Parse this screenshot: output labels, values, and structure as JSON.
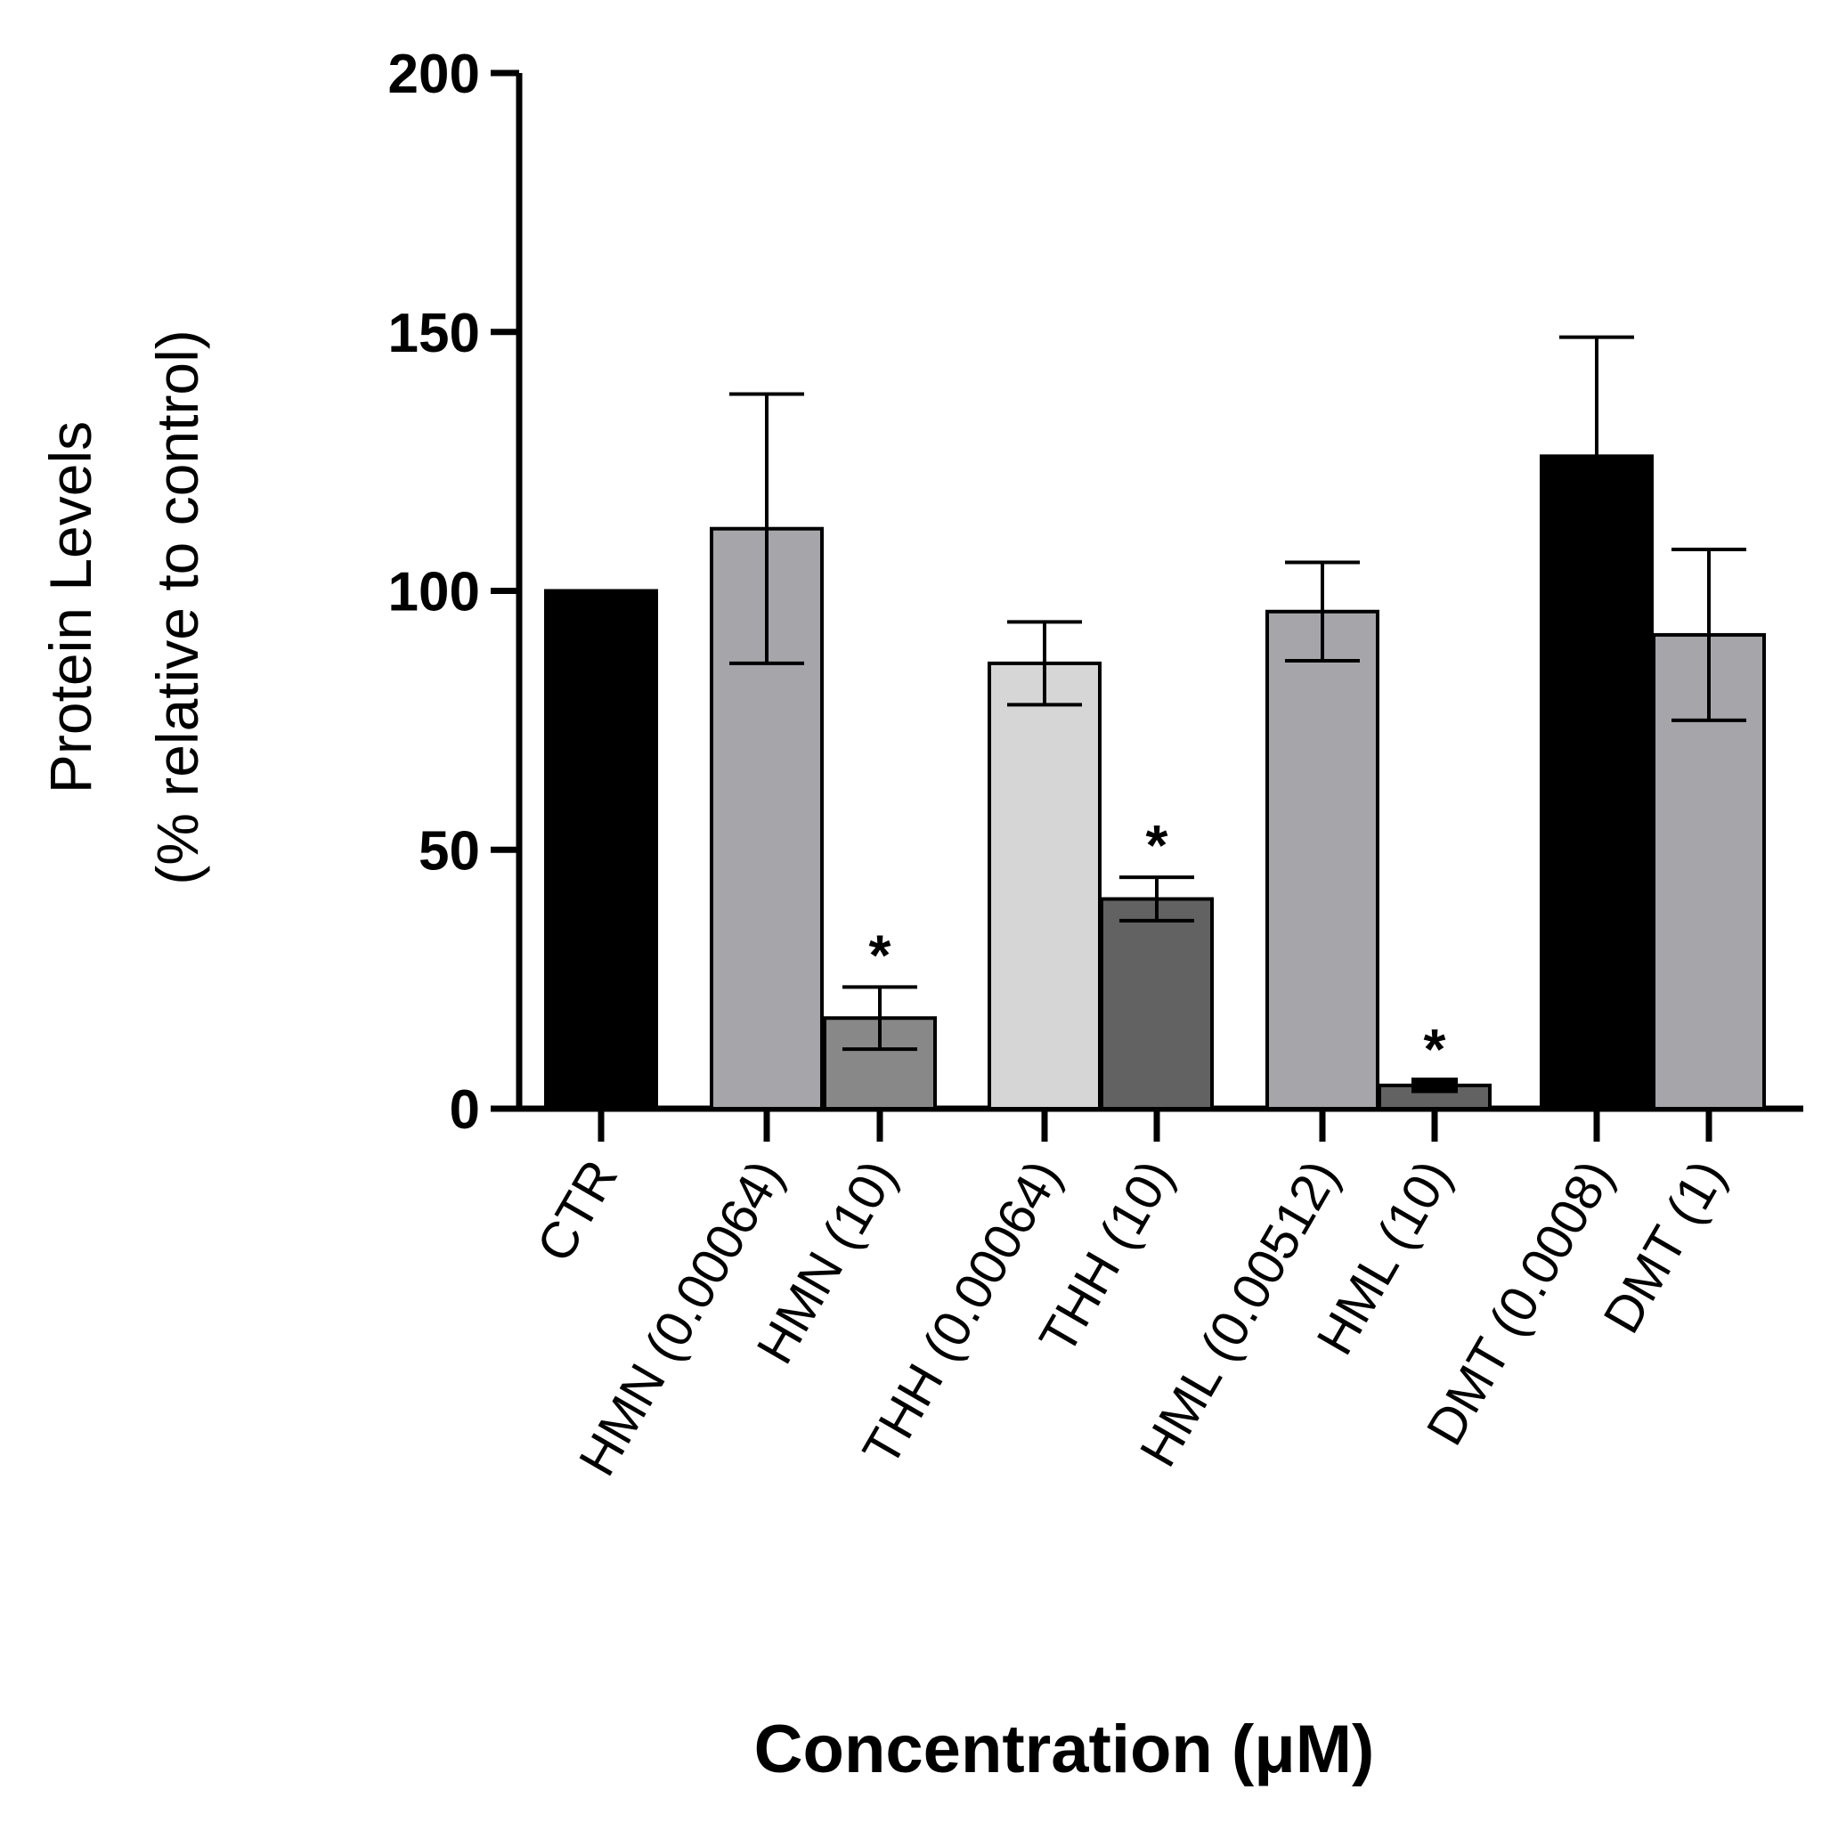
{
  "chart_data": {
    "type": "bar",
    "title": "",
    "ylabel_line1": "Protein Levels",
    "ylabel_line2": "(% relative to control)",
    "xlabel": "Concentration (μM)",
    "ylim": [
      0,
      200
    ],
    "yticks": [
      "0",
      "50",
      "100",
      "150",
      "200"
    ],
    "grid": false,
    "bars": [
      {
        "label": "CTR",
        "value": 100,
        "err": 0,
        "color": "#000000",
        "sig": ""
      },
      {
        "label": "HMN (0.00064)",
        "value": 112,
        "err": 26,
        "color": "#a5a5aa",
        "sig": ""
      },
      {
        "label": "HMN (10)",
        "value": 17.5,
        "err": 6,
        "color": "#888888",
        "sig": "*"
      },
      {
        "label": "THH (0.00064)",
        "value": 86,
        "err": 8,
        "color": "#d6d6d6",
        "sig": ""
      },
      {
        "label": "THH (10)",
        "value": 40.5,
        "err": 4.2,
        "color": "#626262",
        "sig": "*"
      },
      {
        "label": "HML (0.00512)",
        "value": 96,
        "err": 9.5,
        "color": "#a5a5aa",
        "sig": ""
      },
      {
        "label": "HML (10)",
        "value": 4.5,
        "err": 0.8,
        "color": "#626262",
        "sig": "*"
      },
      {
        "label": "DMT (0.0008)",
        "value": 126,
        "err": 23,
        "color": "#000000",
        "sig": ""
      },
      {
        "label": "DMT (1)",
        "value": 91.5,
        "err": 16.5,
        "color": "#a5a5aa",
        "sig": ""
      }
    ]
  }
}
